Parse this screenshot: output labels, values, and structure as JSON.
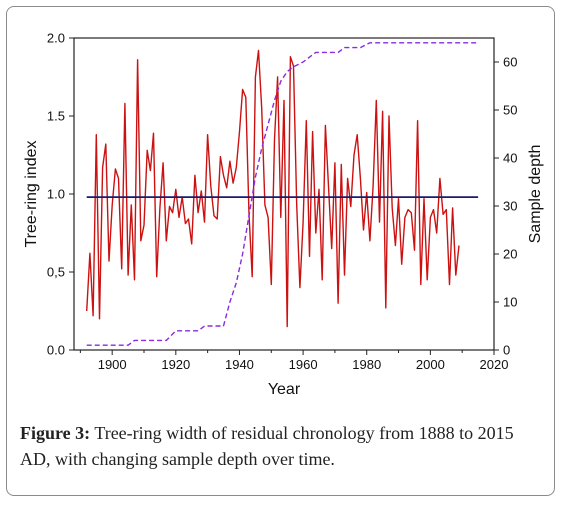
{
  "chart_data": {
    "type": "line",
    "x_axis": {
      "label": "Year",
      "range": [
        1888,
        2020
      ],
      "ticks": [
        1900,
        1920,
        1940,
        1960,
        1980,
        2000,
        2020
      ]
    },
    "y_left": {
      "label": "Tree-ring index",
      "range": [
        0,
        2.0
      ],
      "ticks": [
        0.0,
        0.5,
        1.0,
        1.5,
        2.0
      ],
      "tick_labels": [
        "0.0",
        "0,5",
        "1.0",
        "1.5",
        "2.0"
      ]
    },
    "y_right": {
      "label": "Sample depth",
      "range": [
        0,
        65
      ],
      "ticks": [
        0,
        10,
        20,
        30,
        40,
        50,
        60
      ],
      "tick_labels": [
        "0",
        "10",
        "20",
        "30",
        "40",
        "50",
        "60"
      ]
    },
    "series": [
      {
        "axis": "left",
        "style": "solid",
        "color": "#cc1111",
        "points": [
          [
            1892,
            0.25
          ],
          [
            1893,
            0.62
          ],
          [
            1894,
            0.22
          ],
          [
            1895,
            1.38
          ],
          [
            1896,
            0.2
          ],
          [
            1897,
            1.17
          ],
          [
            1898,
            1.32
          ],
          [
            1899,
            0.57
          ],
          [
            1900,
            0.93
          ],
          [
            1901,
            1.16
          ],
          [
            1902,
            1.1
          ],
          [
            1903,
            0.52
          ],
          [
            1904,
            1.58
          ],
          [
            1905,
            0.48
          ],
          [
            1906,
            0.93
          ],
          [
            1907,
            0.45
          ],
          [
            1908,
            1.86
          ],
          [
            1909,
            0.7
          ],
          [
            1910,
            0.8
          ],
          [
            1911,
            1.28
          ],
          [
            1912,
            1.15
          ],
          [
            1913,
            1.39
          ],
          [
            1914,
            0.47
          ],
          [
            1915,
            0.91
          ],
          [
            1916,
            1.2
          ],
          [
            1917,
            0.7
          ],
          [
            1918,
            0.92
          ],
          [
            1919,
            0.88
          ],
          [
            1920,
            1.03
          ],
          [
            1921,
            0.85
          ],
          [
            1922,
            0.98
          ],
          [
            1923,
            0.81
          ],
          [
            1924,
            0.84
          ],
          [
            1925,
            0.68
          ],
          [
            1926,
            1.12
          ],
          [
            1927,
            0.88
          ],
          [
            1928,
            1.02
          ],
          [
            1929,
            0.82
          ],
          [
            1930,
            1.38
          ],
          [
            1931,
            1.05
          ],
          [
            1932,
            0.86
          ],
          [
            1933,
            0.84
          ],
          [
            1934,
            1.24
          ],
          [
            1935,
            1.12
          ],
          [
            1936,
            1.04
          ],
          [
            1937,
            1.21
          ],
          [
            1938,
            1.07
          ],
          [
            1939,
            1.17
          ],
          [
            1940,
            1.4
          ],
          [
            1941,
            1.67
          ],
          [
            1942,
            1.62
          ],
          [
            1943,
            0.87
          ],
          [
            1944,
            0.47
          ],
          [
            1945,
            1.75
          ],
          [
            1946,
            1.92
          ],
          [
            1947,
            1.55
          ],
          [
            1948,
            0.93
          ],
          [
            1949,
            0.85
          ],
          [
            1950,
            0.42
          ],
          [
            1951,
            1.35
          ],
          [
            1952,
            1.75
          ],
          [
            1953,
            0.85
          ],
          [
            1954,
            1.6
          ],
          [
            1955,
            0.15
          ],
          [
            1956,
            1.88
          ],
          [
            1957,
            1.82
          ],
          [
            1958,
            0.93
          ],
          [
            1959,
            0.4
          ],
          [
            1960,
            0.82
          ],
          [
            1961,
            1.47
          ],
          [
            1962,
            0.6
          ],
          [
            1963,
            1.4
          ],
          [
            1964,
            0.75
          ],
          [
            1965,
            1.03
          ],
          [
            1966,
            0.45
          ],
          [
            1967,
            1.44
          ],
          [
            1968,
            1.05
          ],
          [
            1969,
            0.65
          ],
          [
            1970,
            1.2
          ],
          [
            1971,
            0.3
          ],
          [
            1972,
            1.19
          ],
          [
            1973,
            0.48
          ],
          [
            1974,
            1.1
          ],
          [
            1975,
            0.92
          ],
          [
            1976,
            1.25
          ],
          [
            1977,
            1.38
          ],
          [
            1978,
            1.1
          ],
          [
            1979,
            0.77
          ],
          [
            1980,
            1.01
          ],
          [
            1981,
            0.7
          ],
          [
            1982,
            1.05
          ],
          [
            1983,
            1.6
          ],
          [
            1984,
            0.82
          ],
          [
            1985,
            1.53
          ],
          [
            1986,
            0.27
          ],
          [
            1987,
            1.5
          ],
          [
            1988,
            0.91
          ],
          [
            1989,
            0.67
          ],
          [
            1990,
            0.97
          ],
          [
            1991,
            0.55
          ],
          [
            1992,
            0.85
          ],
          [
            1993,
            0.9
          ],
          [
            1994,
            0.88
          ],
          [
            1995,
            0.64
          ],
          [
            1996,
            1.47
          ],
          [
            1997,
            0.42
          ],
          [
            1998,
            0.97
          ],
          [
            1999,
            0.45
          ],
          [
            2000,
            0.85
          ],
          [
            2001,
            0.9
          ],
          [
            2002,
            0.75
          ],
          [
            2003,
            1.1
          ],
          [
            2004,
            0.87
          ],
          [
            2005,
            0.9
          ],
          [
            2006,
            0.42
          ],
          [
            2007,
            0.91
          ],
          [
            2008,
            0.48
          ],
          [
            2009,
            0.67
          ]
        ]
      },
      {
        "axis": "left",
        "style": "solid",
        "color": "#1a1a6e",
        "points": [
          [
            1892,
            0.98
          ],
          [
            2015,
            0.98
          ]
        ]
      },
      {
        "axis": "right",
        "style": "dashed",
        "color": "#8a2be2",
        "points": [
          [
            1892,
            1
          ],
          [
            1905,
            1
          ],
          [
            1907,
            2
          ],
          [
            1917,
            2
          ],
          [
            1920,
            4
          ],
          [
            1927,
            4
          ],
          [
            1929,
            5
          ],
          [
            1935,
            5
          ],
          [
            1937,
            10
          ],
          [
            1939,
            14
          ],
          [
            1941,
            20
          ],
          [
            1943,
            28
          ],
          [
            1945,
            36
          ],
          [
            1947,
            42
          ],
          [
            1949,
            47
          ],
          [
            1951,
            52
          ],
          [
            1953,
            56
          ],
          [
            1955,
            58
          ],
          [
            1957,
            59
          ],
          [
            1960,
            60
          ],
          [
            1964,
            62
          ],
          [
            1971,
            62
          ],
          [
            1973,
            63
          ],
          [
            1978,
            63
          ],
          [
            1981,
            64
          ],
          [
            2015,
            64
          ]
        ]
      }
    ],
    "grid": false,
    "legend": "none"
  },
  "caption": {
    "label": "Figure 3:",
    "text": " Tree-ring width of residual chronology from 1888 to 2015 AD, with changing sample depth over time."
  }
}
